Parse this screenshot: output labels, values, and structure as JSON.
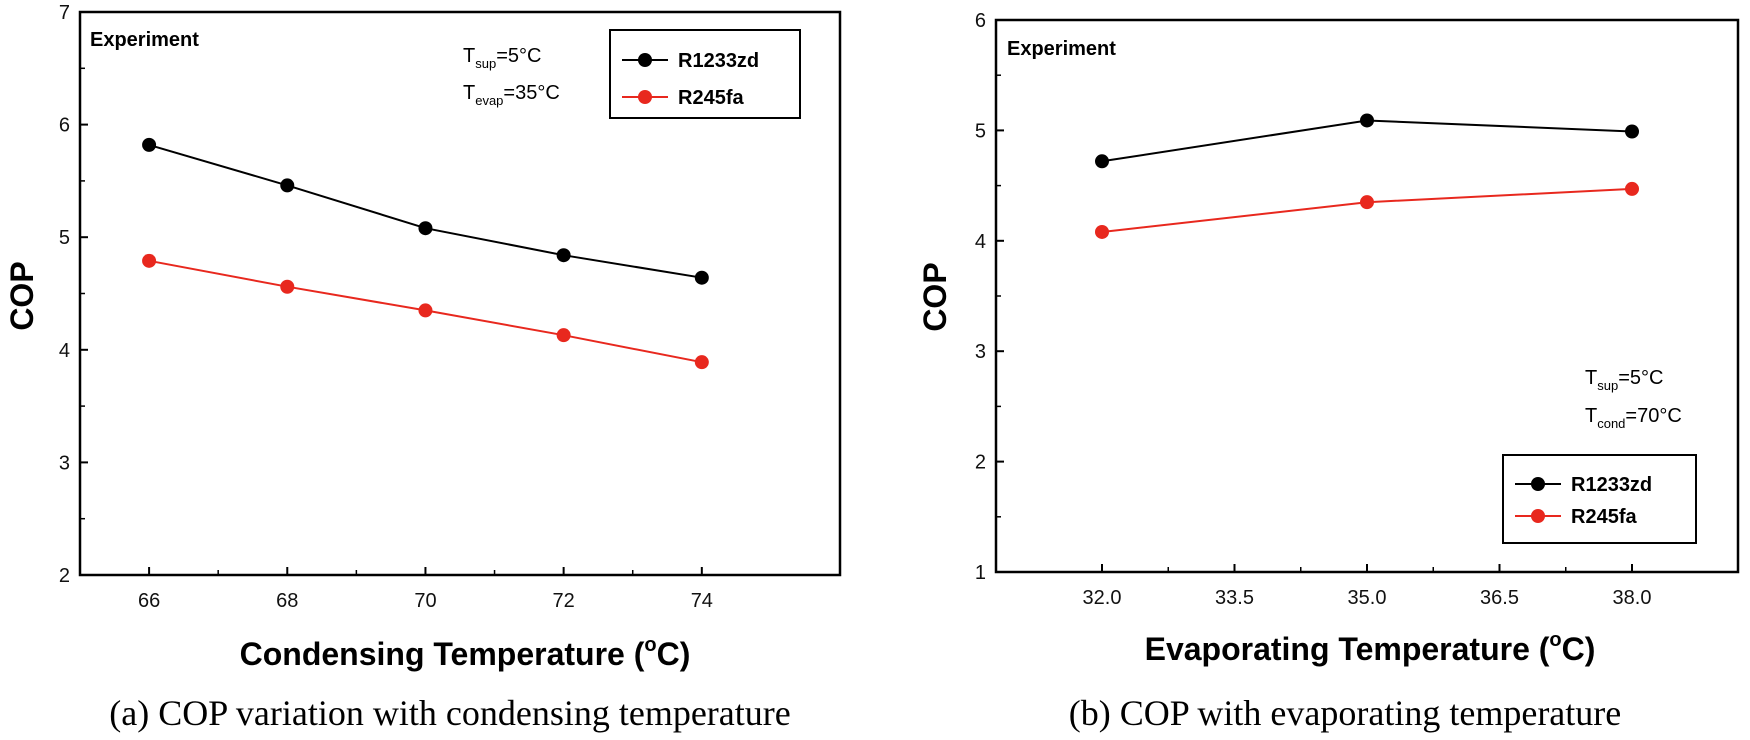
{
  "chart_data": [
    {
      "type": "line",
      "panel": "a",
      "caption": "(a) COP variation with condensing temperature",
      "xlabel": "Condensing Temperature (°C)",
      "xlabel_main": "Condensing Temperature (",
      "xlabel_unit_sup": "o",
      "xlabel_unit_tail": "C)",
      "ylabel": "COP",
      "annotation": "Experiment",
      "conditions": [
        {
          "main": "T",
          "sub": "sup",
          "tail": "=5°C"
        },
        {
          "main": "T",
          "sub": "evap",
          "tail": "=35°C"
        }
      ],
      "xlim": [
        65,
        76
      ],
      "ylim": [
        2,
        7
      ],
      "xticks": [
        66,
        68,
        70,
        72,
        74
      ],
      "xtick_labels": [
        "66",
        "68",
        "70",
        "72",
        "74"
      ],
      "yticks": [
        2,
        3,
        4,
        5,
        6,
        7
      ],
      "ytick_labels": [
        "2",
        "3",
        "4",
        "5",
        "6",
        "7"
      ],
      "legend_position": "top-right",
      "series": [
        {
          "name": "R1233zd",
          "color": "#000000",
          "marker": "circle",
          "x": [
            66,
            68,
            70,
            72,
            74
          ],
          "y": [
            5.82,
            5.46,
            5.08,
            4.84,
            4.64
          ]
        },
        {
          "name": "R245fa",
          "color": "#e8281e",
          "marker": "circle",
          "x": [
            66,
            68,
            70,
            72,
            74
          ],
          "y": [
            4.79,
            4.56,
            4.35,
            4.13,
            3.89
          ]
        }
      ]
    },
    {
      "type": "line",
      "panel": "b",
      "caption": "(b) COP with evaporating temperature",
      "xlabel": "Evaporating Temperature (°C)",
      "xlabel_main": "Evaporating Temperature (",
      "xlabel_unit_sup": "o",
      "xlabel_unit_tail": "C)",
      "ylabel": "COP",
      "annotation": "Experiment",
      "conditions": [
        {
          "main": "T",
          "sub": "sup",
          "tail": "=5°C"
        },
        {
          "main": "T",
          "sub": "cond",
          "tail": "=70°C"
        }
      ],
      "xlim": [
        30.8,
        39.2
      ],
      "ylim": [
        1,
        6
      ],
      "xticks": [
        32.0,
        33.5,
        35.0,
        36.5,
        38.0
      ],
      "xtick_labels": [
        "32.0",
        "33.5",
        "35.0",
        "36.5",
        "38.0"
      ],
      "yticks": [
        1,
        2,
        3,
        4,
        5,
        6
      ],
      "ytick_labels": [
        "1",
        "2",
        "3",
        "4",
        "5",
        "6"
      ],
      "legend_position": "bottom-right",
      "series": [
        {
          "name": "R1233zd",
          "color": "#000000",
          "marker": "circle",
          "x": [
            32.0,
            35.0,
            38.0
          ],
          "y": [
            4.72,
            5.09,
            4.99
          ]
        },
        {
          "name": "R245fa",
          "color": "#e8281e",
          "marker": "circle",
          "x": [
            32.0,
            35.0,
            38.0
          ],
          "y": [
            4.08,
            4.35,
            4.47
          ]
        }
      ]
    }
  ]
}
